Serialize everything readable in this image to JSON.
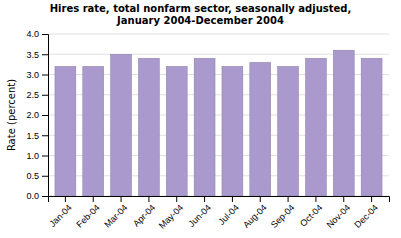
{
  "chart_data": {
    "type": "bar",
    "title": "Hires rate, total nonfarm sector, seasonally adjusted,\nJanuary 2004-December 2004",
    "ylabel": "Rate (percent)",
    "categories": [
      "Jan-04",
      "Feb-04",
      "Mar-04",
      "Apr-04",
      "May-04",
      "Jun-04",
      "Jul-04",
      "Aug-04",
      "Sep-04",
      "Oct-04",
      "Nov-04",
      "Dec-04"
    ],
    "values": [
      3.2,
      3.2,
      3.5,
      3.4,
      3.2,
      3.4,
      3.2,
      3.3,
      3.2,
      3.4,
      3.6,
      3.4
    ],
    "color": "#aa99cc",
    "ylim": [
      0.0,
      4.0
    ],
    "yticks": [
      {
        "value": 0.0,
        "label": "0.0"
      },
      0.5,
      {
        "value": 1.0,
        "label": "1.0"
      },
      1.5,
      {
        "value": 2.0,
        "label": "2.0"
      },
      2.5,
      {
        "value": 3.0,
        "label": "3.0"
      },
      3.5,
      {
        "value": 4.0,
        "label": "4.0"
      }
    ],
    "grid": true
  }
}
